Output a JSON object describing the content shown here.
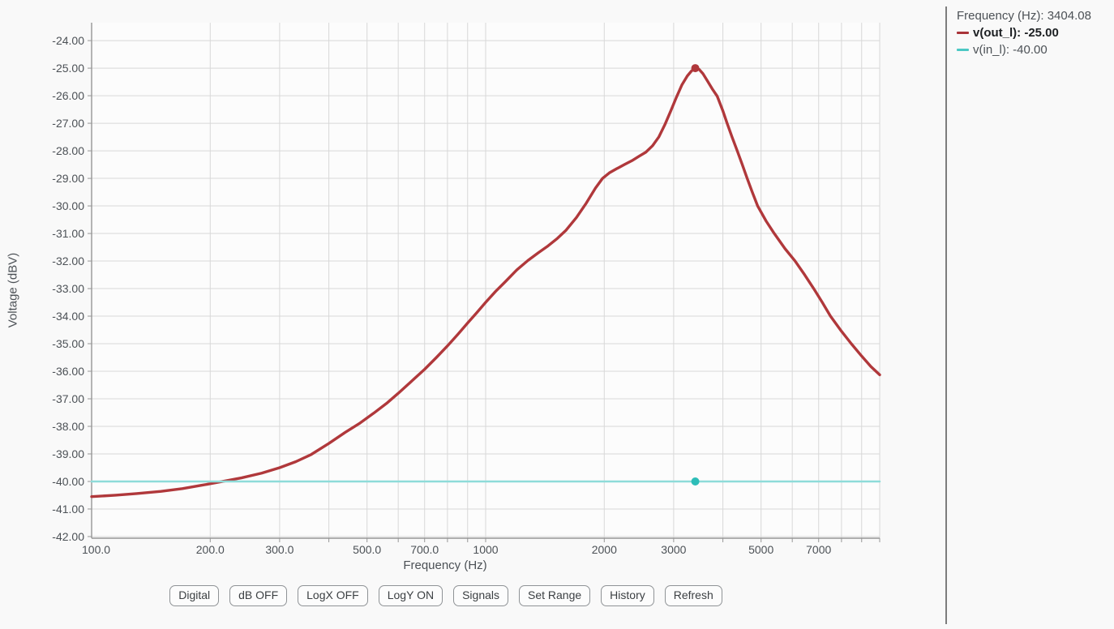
{
  "colors": {
    "page_bg": "#f9f9f9",
    "plot_bg": "#fcfcfc",
    "grid": "#d8d8d8",
    "axis": "#969696",
    "tick_text": "#4c5156",
    "accent_red": "#b0383b",
    "teal_line": "#8edcd9",
    "teal_marker": "#2dbdb8",
    "legend_emphasis": "#1d2023",
    "divider": "#7d7d7d"
  },
  "readout": {
    "frequency_label": "Frequency (Hz): 3404.08",
    "series": [
      {
        "name": "v(out_l)",
        "label": "v(out_l): -25.00",
        "swatch_color": "#a93439",
        "emphasis": true
      },
      {
        "name": "v(in_l)",
        "label": "v(in_l): -40.00",
        "swatch_color": "#4cc8c4",
        "emphasis": false
      }
    ]
  },
  "toolbar": {
    "buttons": [
      "Digital",
      "dB OFF",
      "LogX OFF",
      "LogY ON",
      "Signals",
      "Set Range",
      "History",
      "Refresh"
    ]
  },
  "chart_data": {
    "type": "line",
    "title": "",
    "xlabel": "Frequency (Hz)",
    "ylabel": "Voltage (dBV)",
    "x_scale": "log",
    "grid": true,
    "xlim": [
      100,
      10000
    ],
    "ylim": [
      -42.06,
      -23.35
    ],
    "x_major_ticks": [
      {
        "value": 100,
        "label": "100.0"
      },
      {
        "value": 200,
        "label": "200.0"
      },
      {
        "value": 300,
        "label": "300.0"
      },
      {
        "value": 500,
        "label": "500.0"
      },
      {
        "value": 700,
        "label": "700.0"
      },
      {
        "value": 1000,
        "label": "1000"
      },
      {
        "value": 2000,
        "label": "2000"
      },
      {
        "value": 3000,
        "label": "3000"
      },
      {
        "value": 5000,
        "label": "5000"
      },
      {
        "value": 7000,
        "label": "7000"
      }
    ],
    "x_gridlines": [
      200,
      300,
      400,
      500,
      600,
      700,
      800,
      900,
      1000,
      2000,
      3000,
      4000,
      5000,
      6000,
      7000,
      8000,
      9000,
      10000
    ],
    "y_ticks": [
      {
        "value": -24,
        "label": "-24.00"
      },
      {
        "value": -25,
        "label": "-25.00"
      },
      {
        "value": -26,
        "label": "-26.00"
      },
      {
        "value": -27,
        "label": "-27.00"
      },
      {
        "value": -28,
        "label": "-28.00"
      },
      {
        "value": -29,
        "label": "-29.00"
      },
      {
        "value": -30,
        "label": "-30.00"
      },
      {
        "value": -31,
        "label": "-31.00"
      },
      {
        "value": -32,
        "label": "-32.00"
      },
      {
        "value": -33,
        "label": "-33.00"
      },
      {
        "value": -34,
        "label": "-34.00"
      },
      {
        "value": -35,
        "label": "-35.00"
      },
      {
        "value": -36,
        "label": "-36.00"
      },
      {
        "value": -37,
        "label": "-37.00"
      },
      {
        "value": -38,
        "label": "-38.00"
      },
      {
        "value": -39,
        "label": "-39.00"
      },
      {
        "value": -40,
        "label": "-40.00"
      },
      {
        "value": -41,
        "label": "-41.00"
      },
      {
        "value": -42,
        "label": "-42.00"
      }
    ],
    "cursor": {
      "frequency": 3404.08
    },
    "series": [
      {
        "name": "v(out_l)",
        "color": "#b0383b",
        "stroke_width": 3.4,
        "marker": {
          "x": 3404.08,
          "y": -25.0,
          "color": "#b0383b",
          "r": 5
        },
        "points": [
          [
            100,
            -40.55
          ],
          [
            115,
            -40.5
          ],
          [
            130,
            -40.44
          ],
          [
            150,
            -40.36
          ],
          [
            170,
            -40.26
          ],
          [
            190,
            -40.14
          ],
          [
            215,
            -40.0
          ],
          [
            240,
            -39.87
          ],
          [
            270,
            -39.7
          ],
          [
            300,
            -39.5
          ],
          [
            330,
            -39.28
          ],
          [
            360,
            -39.03
          ],
          [
            400,
            -38.62
          ],
          [
            440,
            -38.22
          ],
          [
            480,
            -37.88
          ],
          [
            520,
            -37.52
          ],
          [
            560,
            -37.17
          ],
          [
            600,
            -36.8
          ],
          [
            650,
            -36.35
          ],
          [
            700,
            -35.93
          ],
          [
            750,
            -35.5
          ],
          [
            800,
            -35.08
          ],
          [
            850,
            -34.66
          ],
          [
            900,
            -34.25
          ],
          [
            950,
            -33.87
          ],
          [
            1000,
            -33.5
          ],
          [
            1060,
            -33.1
          ],
          [
            1120,
            -32.76
          ],
          [
            1200,
            -32.32
          ],
          [
            1280,
            -31.98
          ],
          [
            1360,
            -31.7
          ],
          [
            1440,
            -31.45
          ],
          [
            1520,
            -31.18
          ],
          [
            1600,
            -30.88
          ],
          [
            1700,
            -30.42
          ],
          [
            1800,
            -29.9
          ],
          [
            1900,
            -29.35
          ],
          [
            1980,
            -29.0
          ],
          [
            2060,
            -28.8
          ],
          [
            2150,
            -28.65
          ],
          [
            2250,
            -28.5
          ],
          [
            2350,
            -28.36
          ],
          [
            2450,
            -28.2
          ],
          [
            2550,
            -28.05
          ],
          [
            2650,
            -27.82
          ],
          [
            2750,
            -27.5
          ],
          [
            2850,
            -27.05
          ],
          [
            2950,
            -26.55
          ],
          [
            3050,
            -26.05
          ],
          [
            3150,
            -25.6
          ],
          [
            3250,
            -25.28
          ],
          [
            3330,
            -25.1
          ],
          [
            3404,
            -25.0
          ],
          [
            3480,
            -25.04
          ],
          [
            3560,
            -25.2
          ],
          [
            3650,
            -25.45
          ],
          [
            3770,
            -25.78
          ],
          [
            3870,
            -26.02
          ],
          [
            4000,
            -26.55
          ],
          [
            4100,
            -27.0
          ],
          [
            4220,
            -27.5
          ],
          [
            4350,
            -28.0
          ],
          [
            4480,
            -28.5
          ],
          [
            4610,
            -29.0
          ],
          [
            4750,
            -29.5
          ],
          [
            4900,
            -30.0
          ],
          [
            5150,
            -30.55
          ],
          [
            5400,
            -31.0
          ],
          [
            5750,
            -31.55
          ],
          [
            6100,
            -32.0
          ],
          [
            6450,
            -32.5
          ],
          [
            6800,
            -33.0
          ],
          [
            7150,
            -33.5
          ],
          [
            7500,
            -34.0
          ],
          [
            8000,
            -34.55
          ],
          [
            8470,
            -35.0
          ],
          [
            9000,
            -35.45
          ],
          [
            9500,
            -35.83
          ],
          [
            10000,
            -36.13
          ]
        ]
      },
      {
        "name": "v(in_l)",
        "color": "#8edcd9",
        "stroke_width": 2.5,
        "marker": {
          "x": 3404.08,
          "y": -40.0,
          "color": "#2dbdb8",
          "r": 5
        },
        "points": [
          [
            100,
            -40.0
          ],
          [
            10000,
            -40.0
          ]
        ]
      }
    ]
  }
}
